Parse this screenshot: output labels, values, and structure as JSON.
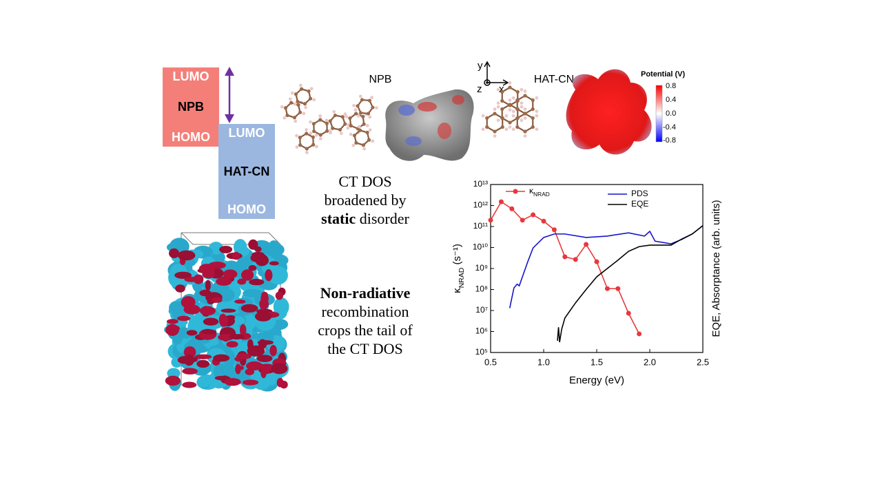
{
  "energy_levels": {
    "donor": {
      "name": "NPB",
      "lumo": "LUMO",
      "homo": "HOMO"
    },
    "acceptor": {
      "name": "HAT-CN",
      "lumo": "LUMO",
      "homo": "HOMO"
    }
  },
  "molecules": {
    "npb": "NPB",
    "hatcn": "HAT-CN",
    "axes": {
      "y": "y",
      "z": "z",
      "x": "x"
    },
    "colorbar": {
      "title": "Potential (V)",
      "ticks": [
        "0.8",
        "0.4",
        "0.0",
        "-0.4",
        "-0.8"
      ]
    }
  },
  "captions": {
    "ct_dos": {
      "line1": "CT DOS",
      "line2": "broadened by",
      "bold": "static",
      "rest": "disorder"
    },
    "nonrad": {
      "bold": "Non-radiative",
      "line2": "recombination",
      "line3": "crops the tail of",
      "line4": "the CT DOS"
    }
  },
  "chart_data": {
    "type": "line",
    "x_label": "Energy (eV)",
    "y_label": "κNRAD (s⁻¹)",
    "y2_label": "EQE, Absorptance (arb. units)",
    "xlim": [
      0.5,
      2.5
    ],
    "xticks": [
      0.5,
      {
        "value": 1,
        "label": "1.0"
      },
      1.5,
      {
        "value": 2,
        "label": "2.0"
      },
      2.5
    ],
    "ylim": [
      100000,
      10000000000000
    ],
    "y_scale": "log",
    "yticks": [
      {
        "value": 100000,
        "label": "10⁵"
      },
      {
        "value": 1000000,
        "label": "10⁶"
      },
      {
        "value": 10000000,
        "label": "10⁷"
      },
      {
        "value": 100000000,
        "label": "10⁸"
      },
      {
        "value": 1000000000,
        "label": "10⁹"
      },
      {
        "value": 10000000000,
        "label": "10¹⁰"
      },
      {
        "value": 100000000000,
        "label": "10¹¹"
      },
      {
        "value": 1000000000000,
        "label": "10¹²"
      },
      {
        "value": 10000000000000,
        "label": "10¹³"
      }
    ],
    "series": [
      {
        "name": "κNRAD",
        "color": "#e8383d",
        "marker": "circle",
        "x": [
          0.5,
          0.6,
          0.7,
          0.8,
          0.9,
          1.0,
          1.1,
          1.2,
          1.3,
          1.4,
          1.5,
          1.6,
          1.7,
          1.8,
          1.9
        ],
        "values": [
          200000000000,
          1500000000000,
          700000000000,
          200000000000,
          360000000000,
          180000000000,
          70000000000,
          3600000000,
          2700000000,
          14000000000,
          2100000000,
          110000000,
          110000000,
          7400000,
          770000
        ]
      },
      {
        "name": "PDS",
        "color": "#1414c8",
        "x": [
          0.68,
          0.72,
          0.75,
          0.77,
          0.85,
          0.9,
          1.0,
          1.1,
          1.2,
          1.4,
          1.6,
          1.8,
          1.95,
          2.0,
          2.05,
          2.2,
          2.3,
          2.4,
          2.5
        ],
        "values": [
          13000000,
          120000000,
          180000000,
          150000000,
          2100000000,
          9500000000,
          30000000000,
          44000000000,
          44000000000,
          30000000000,
          35000000000,
          50000000000,
          35000000000,
          59000000000,
          20000000000,
          15000000000,
          24000000000,
          44000000000,
          110000000000
        ]
      },
      {
        "name": "EQE",
        "color": "#000000",
        "x": [
          1.13,
          1.14,
          1.15,
          1.17,
          1.2,
          1.3,
          1.4,
          1.5,
          1.6,
          1.7,
          1.8,
          1.9,
          2.0,
          2.1,
          2.2,
          2.3,
          2.4,
          2.5
        ],
        "values": [
          360000,
          1600000,
          310000,
          1300000,
          4400000,
          23000000,
          100000000,
          400000000,
          1000000000,
          2500000000,
          6600000000,
          11000000000,
          13000000000,
          13000000000,
          13000000000,
          25000000000,
          44000000000,
          110000000000
        ]
      }
    ]
  }
}
